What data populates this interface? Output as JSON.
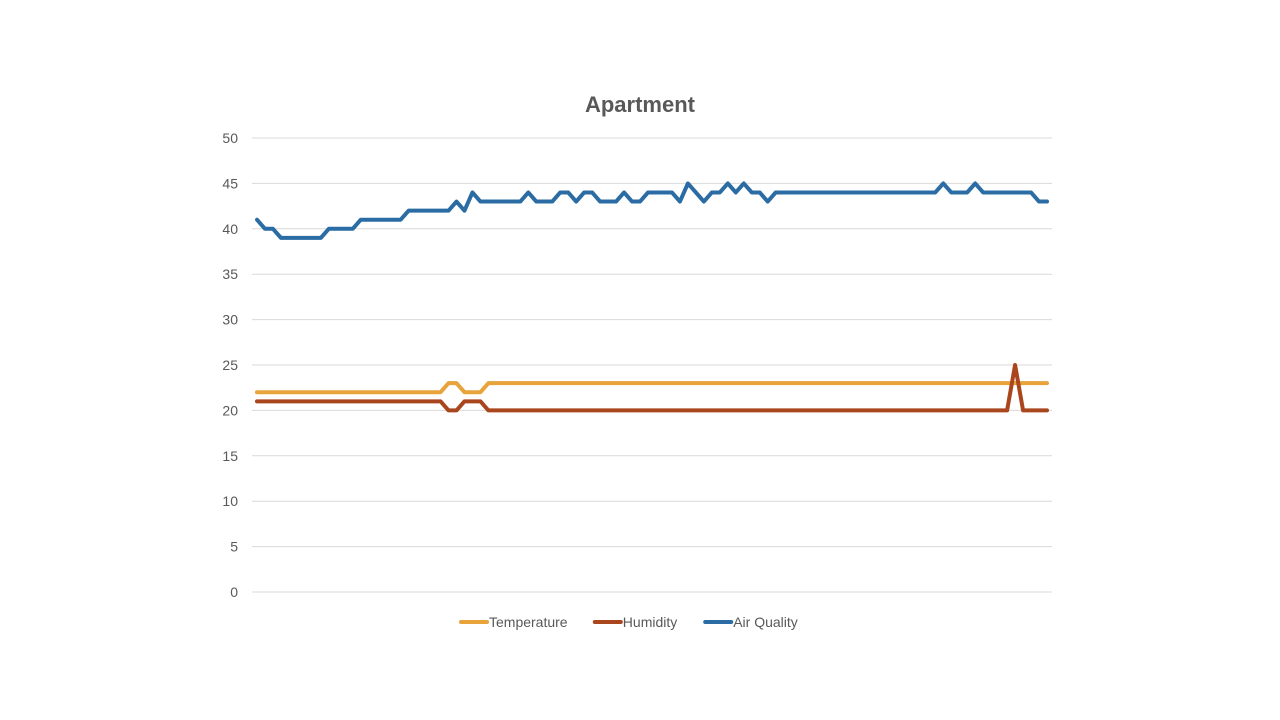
{
  "chart_data": {
    "type": "line",
    "title": "Apartment",
    "xlabel": "",
    "ylabel": "",
    "ylim": [
      0,
      50
    ],
    "yticks": [
      0,
      5,
      10,
      15,
      20,
      25,
      30,
      35,
      40,
      45,
      50
    ],
    "ytick_labels": [
      "0",
      "5",
      "10",
      "15",
      "20",
      "25",
      "30",
      "35",
      "40",
      "45",
      "50"
    ],
    "grid": true,
    "legend": "bottom",
    "x": [
      1,
      2,
      3,
      4,
      5,
      6,
      7,
      8,
      9,
      10,
      11,
      12,
      13,
      14,
      15,
      16,
      17,
      18,
      19,
      20,
      21,
      22,
      23,
      24,
      25,
      26,
      27,
      28,
      29,
      30,
      31,
      32,
      33,
      34,
      35,
      36,
      37,
      38,
      39,
      40,
      41,
      42,
      43,
      44,
      45,
      46,
      47,
      48,
      49,
      50,
      51,
      52,
      53,
      54,
      55,
      56,
      57,
      58,
      59,
      60,
      61,
      62,
      63,
      64,
      65,
      66,
      67,
      68,
      69,
      70,
      71,
      72,
      73,
      74,
      75,
      76,
      77,
      78,
      79,
      80,
      81,
      82,
      83,
      84,
      85,
      86,
      87,
      88,
      89,
      90,
      91,
      92,
      93,
      94,
      95,
      96,
      97,
      98,
      99,
      100
    ],
    "series": [
      {
        "name": "Temperature",
        "color": "#E8A33A",
        "values": [
          22,
          22,
          22,
          22,
          22,
          22,
          22,
          22,
          22,
          22,
          22,
          22,
          22,
          22,
          22,
          22,
          22,
          22,
          22,
          22,
          22,
          22,
          22,
          22,
          23,
          23,
          22,
          22,
          22,
          23,
          23,
          23,
          23,
          23,
          23,
          23,
          23,
          23,
          23,
          23,
          23,
          23,
          23,
          23,
          23,
          23,
          23,
          23,
          23,
          23,
          23,
          23,
          23,
          23,
          23,
          23,
          23,
          23,
          23,
          23,
          23,
          23,
          23,
          23,
          23,
          23,
          23,
          23,
          23,
          23,
          23,
          23,
          23,
          23,
          23,
          23,
          23,
          23,
          23,
          23,
          23,
          23,
          23,
          23,
          23,
          23,
          23,
          23,
          23,
          23,
          23,
          23,
          23,
          23,
          23,
          23,
          23,
          23,
          23,
          23
        ]
      },
      {
        "name": "Humidity",
        "color": "#A9461E",
        "values": [
          21,
          21,
          21,
          21,
          21,
          21,
          21,
          21,
          21,
          21,
          21,
          21,
          21,
          21,
          21,
          21,
          21,
          21,
          21,
          21,
          21,
          21,
          21,
          21,
          20,
          20,
          21,
          21,
          21,
          20,
          20,
          20,
          20,
          20,
          20,
          20,
          20,
          20,
          20,
          20,
          20,
          20,
          20,
          20,
          20,
          20,
          20,
          20,
          20,
          20,
          20,
          20,
          20,
          20,
          20,
          20,
          20,
          20,
          20,
          20,
          20,
          20,
          20,
          20,
          20,
          20,
          20,
          20,
          20,
          20,
          20,
          20,
          20,
          20,
          20,
          20,
          20,
          20,
          20,
          20,
          20,
          20,
          20,
          20,
          20,
          20,
          20,
          20,
          20,
          20,
          20,
          20,
          20,
          20,
          20,
          25,
          20,
          20,
          20,
          20
        ]
      },
      {
        "name": "Air Quality",
        "color": "#2A6CA3",
        "values": [
          41,
          40,
          40,
          39,
          39,
          39,
          39,
          39,
          39,
          40,
          40,
          40,
          40,
          41,
          41,
          41,
          41,
          41,
          41,
          42,
          42,
          42,
          42,
          42,
          42,
          43,
          42,
          44,
          43,
          43,
          43,
          43,
          43,
          43,
          44,
          43,
          43,
          43,
          44,
          44,
          43,
          44,
          44,
          43,
          43,
          43,
          44,
          43,
          43,
          44,
          44,
          44,
          44,
          43,
          45,
          44,
          43,
          44,
          44,
          45,
          44,
          45,
          44,
          44,
          43,
          44,
          44,
          44,
          44,
          44,
          44,
          44,
          44,
          44,
          44,
          44,
          44,
          44,
          44,
          44,
          44,
          44,
          44,
          44,
          44,
          44,
          45,
          44,
          44,
          44,
          45,
          44,
          44,
          44,
          44,
          44,
          44,
          44,
          43,
          43
        ]
      }
    ]
  }
}
